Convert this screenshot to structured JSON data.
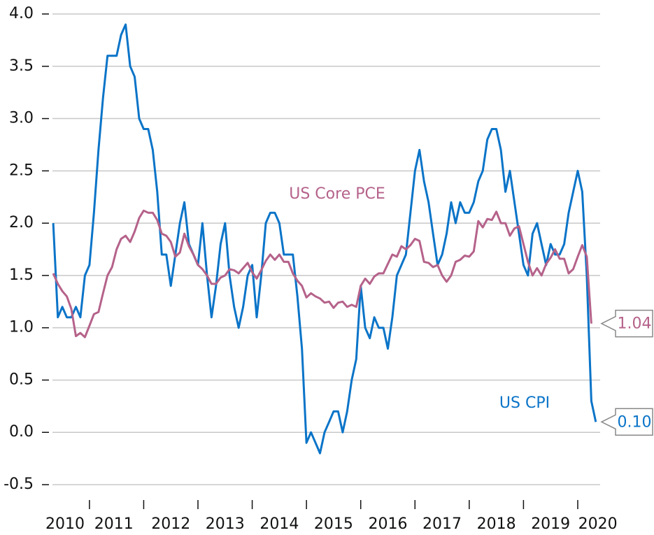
{
  "chart_data": {
    "type": "line",
    "x": [
      2010.333,
      2010.417,
      2010.5,
      2010.583,
      2010.667,
      2010.75,
      2010.833,
      2010.917,
      2011,
      2011.083,
      2011.167,
      2011.25,
      2011.333,
      2011.417,
      2011.5,
      2011.583,
      2011.667,
      2011.75,
      2011.833,
      2011.917,
      2012,
      2012.083,
      2012.167,
      2012.25,
      2012.333,
      2012.417,
      2012.5,
      2012.583,
      2012.667,
      2012.75,
      2012.833,
      2012.917,
      2013,
      2013.083,
      2013.167,
      2013.25,
      2013.333,
      2013.417,
      2013.5,
      2013.583,
      2013.667,
      2013.75,
      2013.833,
      2013.917,
      2014,
      2014.083,
      2014.167,
      2014.25,
      2014.333,
      2014.417,
      2014.5,
      2014.583,
      2014.667,
      2014.75,
      2014.833,
      2014.917,
      2015,
      2015.083,
      2015.167,
      2015.25,
      2015.333,
      2015.417,
      2015.5,
      2015.583,
      2015.667,
      2015.75,
      2015.833,
      2015.917,
      2016,
      2016.083,
      2016.167,
      2016.25,
      2016.333,
      2016.417,
      2016.5,
      2016.583,
      2016.667,
      2016.75,
      2016.833,
      2016.917,
      2017,
      2017.083,
      2017.167,
      2017.25,
      2017.333,
      2017.417,
      2017.5,
      2017.583,
      2017.667,
      2017.75,
      2017.833,
      2017.917,
      2018,
      2018.083,
      2018.167,
      2018.25,
      2018.333,
      2018.417,
      2018.5,
      2018.583,
      2018.667,
      2018.75,
      2018.833,
      2018.917,
      2019,
      2019.083,
      2019.167,
      2019.25,
      2019.333,
      2019.417,
      2019.5,
      2019.583,
      2019.667,
      2019.75,
      2019.833,
      2019.917,
      2020,
      2020.083,
      2020.167,
      2020.25,
      2020.333
    ],
    "series": [
      {
        "name": "US CPI",
        "color": "#0a74c8",
        "end_label": "0.10",
        "values": [
          2.0,
          1.1,
          1.2,
          1.1,
          1.1,
          1.2,
          1.1,
          1.5,
          1.6,
          2.1,
          2.7,
          3.2,
          3.6,
          3.6,
          3.6,
          3.8,
          3.9,
          3.5,
          3.4,
          3.0,
          2.9,
          2.9,
          2.7,
          2.3,
          1.7,
          1.7,
          1.4,
          1.7,
          2.0,
          2.2,
          1.8,
          1.7,
          1.6,
          2.0,
          1.5,
          1.1,
          1.4,
          1.8,
          2.0,
          1.5,
          1.2,
          1.0,
          1.2,
          1.5,
          1.6,
          1.1,
          1.5,
          2.0,
          2.1,
          2.1,
          2.0,
          1.7,
          1.7,
          1.7,
          1.3,
          0.8,
          -0.1,
          0.0,
          -0.1,
          -0.2,
          0.0,
          0.1,
          0.2,
          0.2,
          0.0,
          0.2,
          0.5,
          0.7,
          1.4,
          1.0,
          0.9,
          1.1,
          1.0,
          1.0,
          0.8,
          1.1,
          1.5,
          1.6,
          1.7,
          2.1,
          2.5,
          2.7,
          2.4,
          2.2,
          1.9,
          1.6,
          1.7,
          1.9,
          2.2,
          2.0,
          2.2,
          2.1,
          2.1,
          2.2,
          2.4,
          2.5,
          2.8,
          2.9,
          2.9,
          2.7,
          2.3,
          2.5,
          2.2,
          1.9,
          1.6,
          1.5,
          1.9,
          2.0,
          1.8,
          1.6,
          1.8,
          1.7,
          1.7,
          1.8,
          2.1,
          2.3,
          2.5,
          2.3,
          1.5,
          0.3,
          0.1
        ]
      },
      {
        "name": "US Core PCE",
        "color": "#b5628a",
        "end_label": "1.04",
        "values": [
          1.52,
          1.42,
          1.35,
          1.3,
          1.18,
          0.92,
          0.95,
          0.91,
          1.02,
          1.13,
          1.15,
          1.33,
          1.5,
          1.58,
          1.75,
          1.85,
          1.88,
          1.82,
          1.92,
          2.05,
          2.12,
          2.1,
          2.1,
          2.03,
          1.9,
          1.88,
          1.82,
          1.68,
          1.72,
          1.9,
          1.78,
          1.7,
          1.6,
          1.56,
          1.5,
          1.42,
          1.42,
          1.48,
          1.5,
          1.56,
          1.55,
          1.52,
          1.57,
          1.62,
          1.53,
          1.47,
          1.55,
          1.64,
          1.7,
          1.65,
          1.7,
          1.63,
          1.63,
          1.52,
          1.45,
          1.4,
          1.29,
          1.33,
          1.3,
          1.28,
          1.24,
          1.25,
          1.19,
          1.24,
          1.25,
          1.2,
          1.22,
          1.2,
          1.4,
          1.47,
          1.42,
          1.49,
          1.52,
          1.52,
          1.61,
          1.7,
          1.68,
          1.78,
          1.75,
          1.79,
          1.85,
          1.83,
          1.63,
          1.62,
          1.58,
          1.6,
          1.5,
          1.44,
          1.5,
          1.63,
          1.65,
          1.69,
          1.68,
          1.73,
          2.02,
          1.96,
          2.04,
          2.03,
          2.11,
          2.0,
          2.0,
          1.88,
          1.95,
          1.97,
          1.8,
          1.63,
          1.5,
          1.57,
          1.5,
          1.61,
          1.67,
          1.75,
          1.66,
          1.66,
          1.52,
          1.56,
          1.68,
          1.79,
          1.68,
          1.04,
          null
        ]
      }
    ],
    "ylim": [
      -0.5,
      4.0
    ],
    "yticks": [
      {
        "value": -0.5,
        "label": "-0.5"
      },
      {
        "value": 0,
        "label": "0.0"
      },
      0.5,
      {
        "value": 1,
        "label": "1.0"
      },
      1.5,
      {
        "value": 2,
        "label": "2.0"
      },
      2.5,
      {
        "value": 3,
        "label": "3.0"
      },
      3.5,
      {
        "value": 4,
        "label": "4.0"
      }
    ],
    "xlim": [
      2010.357,
      2020.4
    ],
    "xticks": [
      {
        "value": 2010.55,
        "label": "2010"
      },
      {
        "value": 2011.45,
        "label": "2011"
      },
      {
        "value": 2012.5,
        "label": "2012"
      },
      {
        "value": 2013.5,
        "label": "2013"
      },
      {
        "value": 2014.5,
        "label": "2014"
      },
      {
        "value": 2015.5,
        "label": "2015"
      },
      {
        "value": 2016.5,
        "label": "2016"
      },
      {
        "value": 2017.5,
        "label": "2017"
      },
      {
        "value": 2018.5,
        "label": "2018"
      },
      {
        "value": 2019.5,
        "label": "2019"
      },
      {
        "value": 2020.37,
        "label": "2020"
      }
    ],
    "xtick_marks": [
      2011,
      2012,
      2013,
      2014,
      2015,
      2016,
      2017,
      2018,
      2019,
      2020
    ],
    "grid": true
  }
}
